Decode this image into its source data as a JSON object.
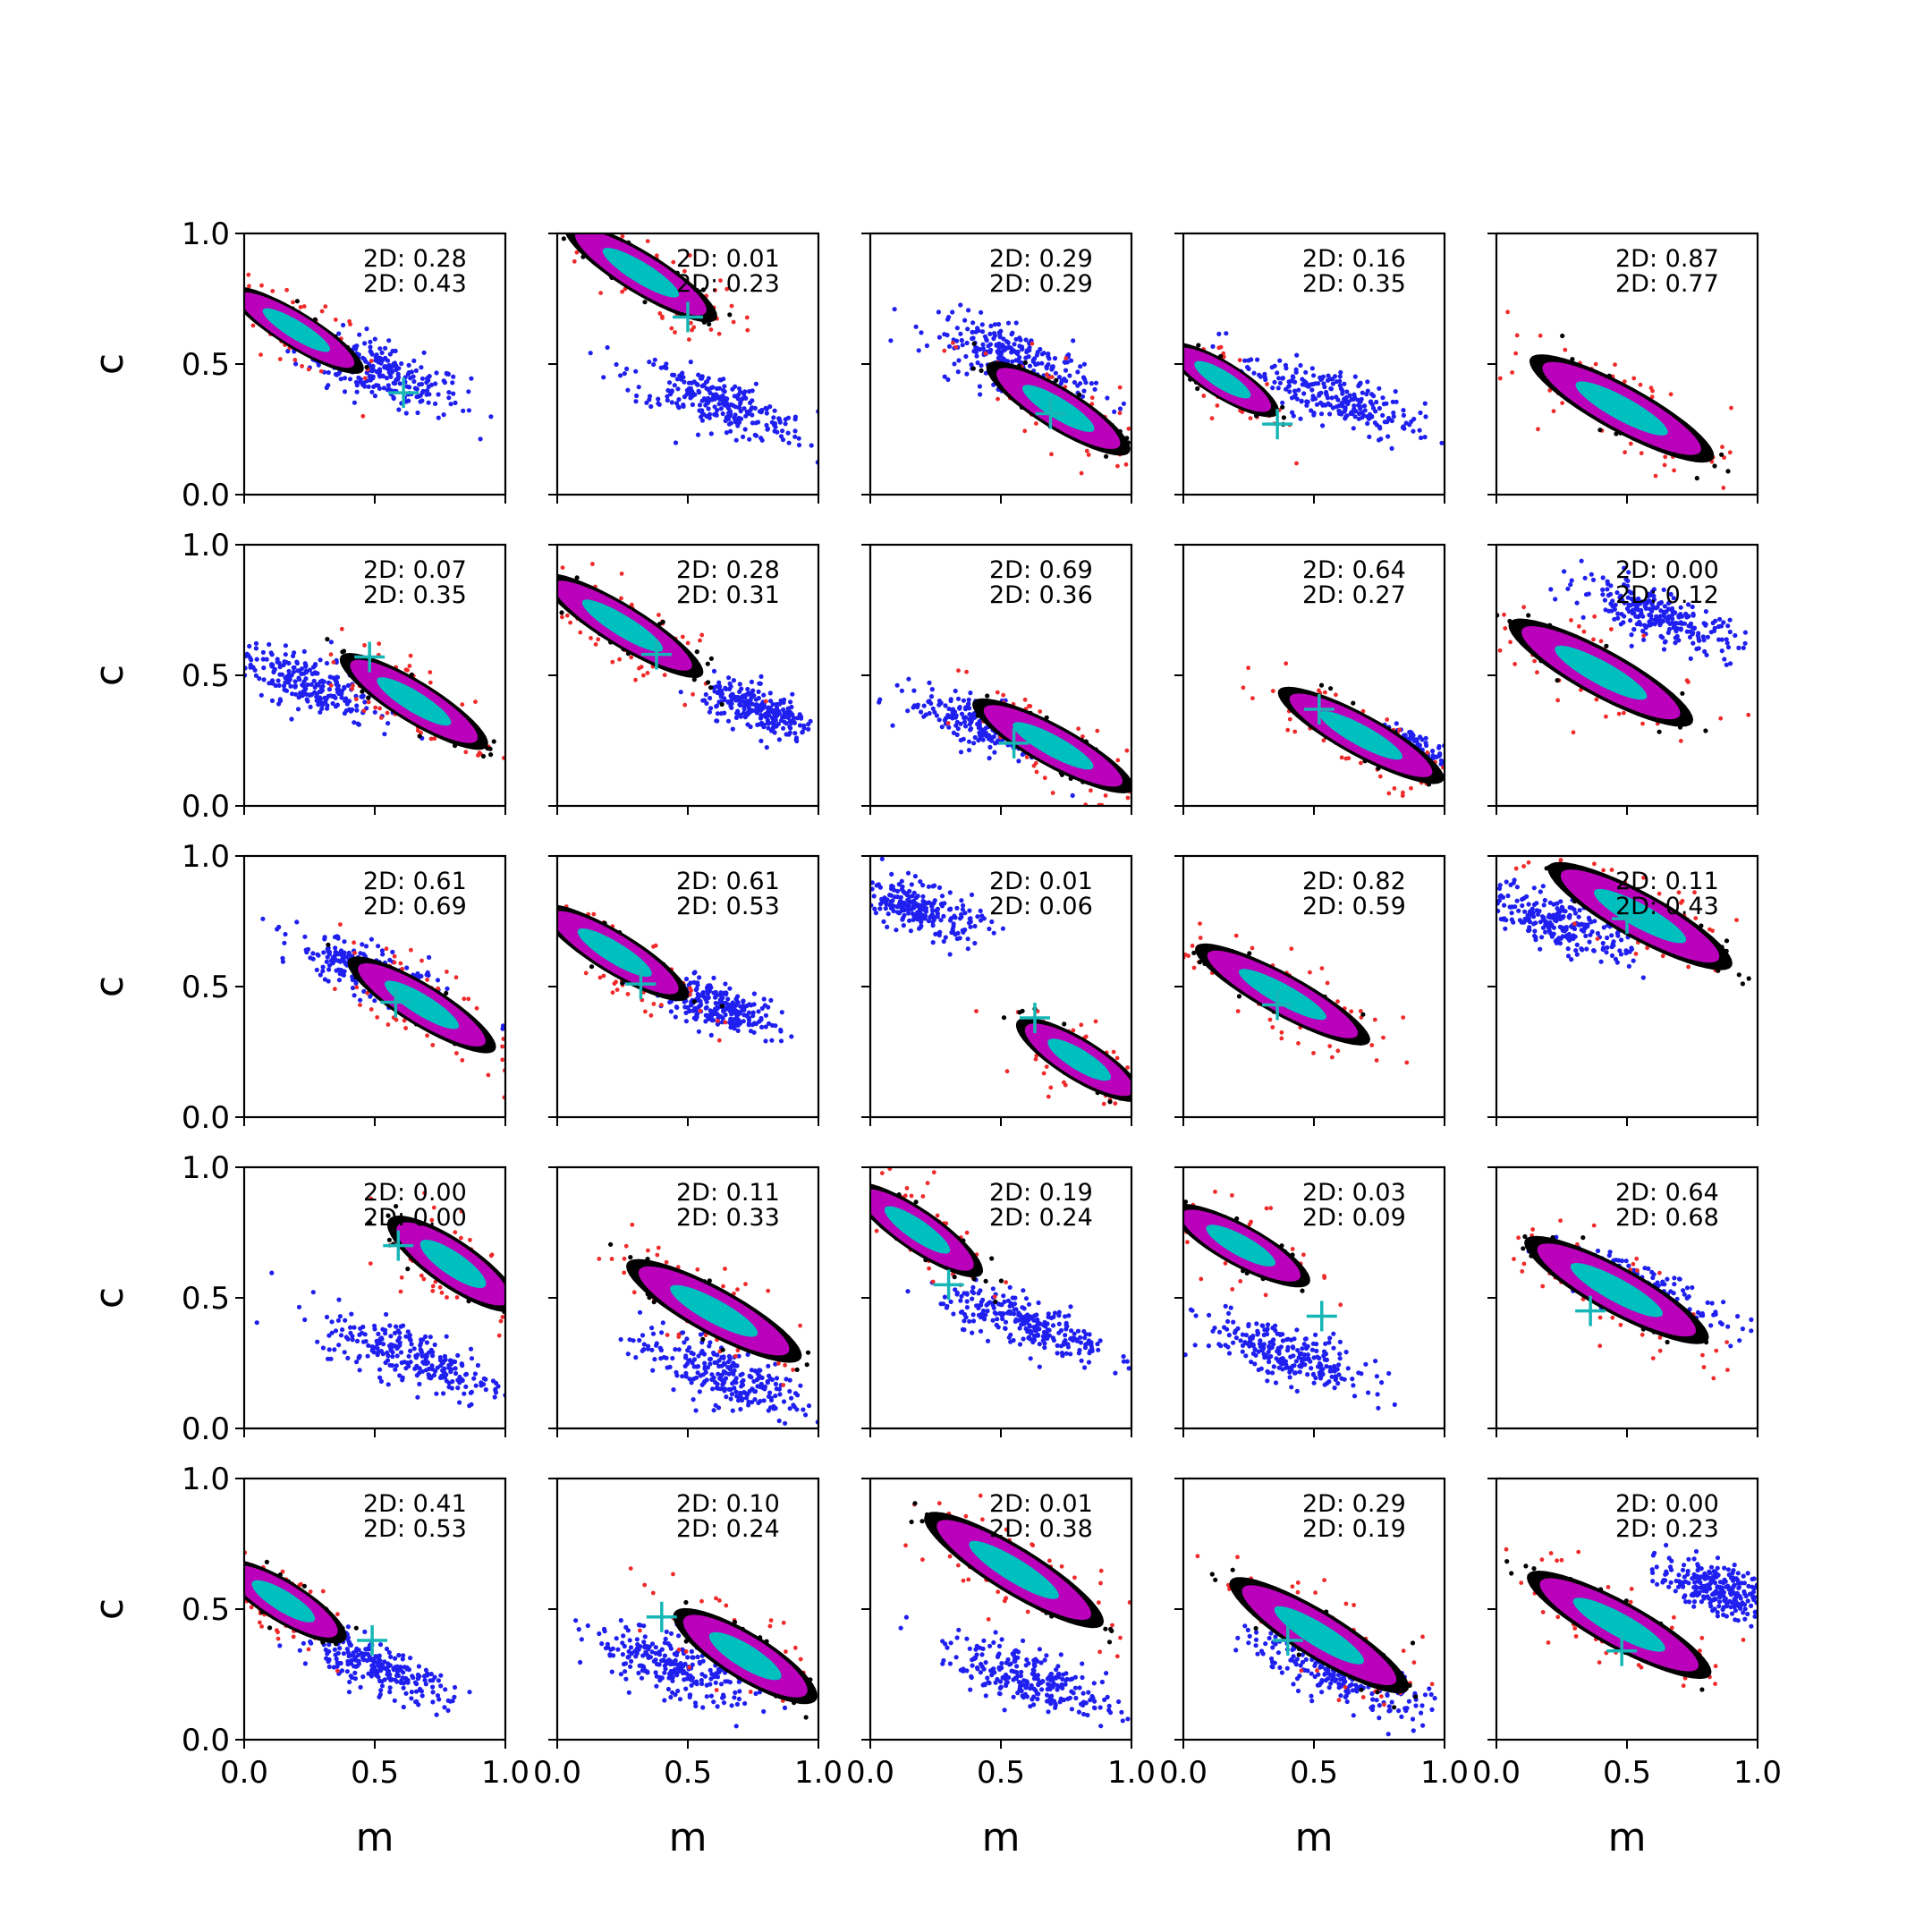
{
  "chart_data": {
    "type": "scatter",
    "layout": "5x5 small multiples",
    "xlabel": "m",
    "ylabel": "c",
    "xlim": [
      0,
      1
    ],
    "ylim": [
      0,
      1
    ],
    "x_ticks": [
      "0.0",
      "0.5",
      "1.0"
    ],
    "y_ticks": [
      "0.0",
      "0.5",
      "1.0"
    ],
    "colors": {
      "blue_samples": "#1f1ff0",
      "red_samples": "#f02a2a",
      "black_outline": "#000000",
      "magenta_core": "#bb00bb",
      "cyan_center": "#00bfbf",
      "truth_marker": "#17b6b6"
    },
    "panels": [
      {
        "labels": [
          "2D: 0.28",
          "2D: 0.43"
        ],
        "main": {
          "cx": 0.2,
          "cy": 0.63,
          "angle": -0.55,
          "sx": 0.3,
          "sy": 0.07
        },
        "blue": {
          "cx": 0.52,
          "cy": 0.47,
          "angle": -0.35,
          "sx": 0.3,
          "sy": 0.1
        },
        "truth": [
          0.61,
          0.39
        ]
      },
      {
        "labels": [
          "2D: 0.01",
          "2D: 0.23"
        ],
        "main": {
          "cx": 0.32,
          "cy": 0.85,
          "angle": -0.55,
          "sx": 0.34,
          "sy": 0.08
        },
        "blue": {
          "cx": 0.62,
          "cy": 0.35,
          "angle": -0.35,
          "sx": 0.33,
          "sy": 0.09
        },
        "truth": [
          0.5,
          0.68
        ]
      },
      {
        "labels": [
          "2D: 0.29",
          "2D: 0.29"
        ],
        "main": {
          "cx": 0.72,
          "cy": 0.33,
          "angle": -0.55,
          "sx": 0.32,
          "sy": 0.08
        },
        "blue": {
          "cx": 0.55,
          "cy": 0.52,
          "angle": -0.35,
          "sx": 0.3,
          "sy": 0.1
        },
        "truth": [
          0.69,
          0.31
        ]
      },
      {
        "labels": [
          "2D: 0.16",
          "2D: 0.35"
        ],
        "main": {
          "cx": 0.15,
          "cy": 0.44,
          "angle": -0.55,
          "sx": 0.25,
          "sy": 0.07
        },
        "blue": {
          "cx": 0.55,
          "cy": 0.38,
          "angle": -0.35,
          "sx": 0.33,
          "sy": 0.09
        },
        "truth": [
          0.36,
          0.27
        ]
      },
      {
        "labels": [
          "2D: 0.87",
          "2D: 0.77"
        ],
        "main": {
          "cx": 0.48,
          "cy": 0.33,
          "angle": -0.5,
          "sx": 0.4,
          "sy": 0.09
        },
        "blue": null,
        "truth": null
      },
      {
        "labels": [
          "2D: 0.07",
          "2D: 0.35"
        ],
        "main": {
          "cx": 0.65,
          "cy": 0.4,
          "angle": -0.55,
          "sx": 0.33,
          "sy": 0.08
        },
        "blue": {
          "cx": 0.22,
          "cy": 0.48,
          "angle": -0.35,
          "sx": 0.28,
          "sy": 0.09
        },
        "truth": [
          0.48,
          0.57
        ]
      },
      {
        "labels": [
          "2D: 0.28",
          "2D: 0.31"
        ],
        "main": {
          "cx": 0.25,
          "cy": 0.69,
          "angle": -0.55,
          "sx": 0.36,
          "sy": 0.08
        },
        "blue": {
          "cx": 0.78,
          "cy": 0.36,
          "angle": -0.35,
          "sx": 0.2,
          "sy": 0.07
        },
        "truth": [
          0.38,
          0.58
        ]
      },
      {
        "labels": [
          "2D: 0.69",
          "2D: 0.36"
        ],
        "main": {
          "cx": 0.7,
          "cy": 0.23,
          "angle": -0.5,
          "sx": 0.35,
          "sy": 0.08
        },
        "blue": {
          "cx": 0.45,
          "cy": 0.3,
          "angle": -0.35,
          "sx": 0.28,
          "sy": 0.08
        },
        "truth": [
          0.55,
          0.24
        ]
      },
      {
        "labels": [
          "2D: 0.64",
          "2D: 0.27"
        ],
        "main": {
          "cx": 0.68,
          "cy": 0.27,
          "angle": -0.5,
          "sx": 0.36,
          "sy": 0.08
        },
        "blue": {
          "cx": 0.85,
          "cy": 0.22,
          "angle": -0.35,
          "sx": 0.14,
          "sy": 0.06
        },
        "truth": [
          0.52,
          0.37
        ]
      },
      {
        "labels": [
          "2D: 0.00",
          "2D: 0.12"
        ],
        "main": {
          "cx": 0.4,
          "cy": 0.51,
          "angle": -0.5,
          "sx": 0.4,
          "sy": 0.09
        },
        "blue": {
          "cx": 0.62,
          "cy": 0.73,
          "angle": -0.35,
          "sx": 0.3,
          "sy": 0.08
        },
        "truth": null
      },
      {
        "labels": [
          "2D: 0.61",
          "2D: 0.69"
        ],
        "main": {
          "cx": 0.68,
          "cy": 0.43,
          "angle": -0.55,
          "sx": 0.33,
          "sy": 0.08
        },
        "blue": {
          "cx": 0.48,
          "cy": 0.55,
          "angle": -0.4,
          "sx": 0.28,
          "sy": 0.08
        },
        "truth": [
          0.58,
          0.44
        ]
      },
      {
        "labels": [
          "2D: 0.61",
          "2D: 0.53"
        ],
        "main": {
          "cx": 0.22,
          "cy": 0.63,
          "angle": -0.55,
          "sx": 0.33,
          "sy": 0.08
        },
        "blue": {
          "cx": 0.62,
          "cy": 0.42,
          "angle": -0.35,
          "sx": 0.22,
          "sy": 0.07
        },
        "truth": [
          0.32,
          0.51
        ]
      },
      {
        "labels": [
          "2D: 0.01",
          "2D: 0.06"
        ],
        "main": {
          "cx": 0.8,
          "cy": 0.22,
          "angle": -0.55,
          "sx": 0.28,
          "sy": 0.08
        },
        "blue": {
          "cx": 0.18,
          "cy": 0.8,
          "angle": -0.35,
          "sx": 0.22,
          "sy": 0.08
        },
        "truth": [
          0.63,
          0.38
        ]
      },
      {
        "labels": [
          "2D: 0.82",
          "2D: 0.59"
        ],
        "main": {
          "cx": 0.38,
          "cy": 0.47,
          "angle": -0.5,
          "sx": 0.38,
          "sy": 0.08
        },
        "blue": null,
        "truth": [
          0.36,
          0.43
        ]
      },
      {
        "labels": [
          "2D: 0.11",
          "2D: 0.43"
        ],
        "main": {
          "cx": 0.55,
          "cy": 0.77,
          "angle": -0.5,
          "sx": 0.4,
          "sy": 0.09
        },
        "blue": {
          "cx": 0.25,
          "cy": 0.74,
          "angle": -0.35,
          "sx": 0.28,
          "sy": 0.09
        },
        "truth": [
          0.5,
          0.76
        ]
      },
      {
        "labels": [
          "2D: 0.00",
          "2D: 0.00"
        ],
        "main": {
          "cx": 0.8,
          "cy": 0.63,
          "angle": -0.6,
          "sx": 0.3,
          "sy": 0.09
        },
        "blue": {
          "cx": 0.66,
          "cy": 0.27,
          "angle": -0.35,
          "sx": 0.34,
          "sy": 0.1
        },
        "truth": [
          0.59,
          0.7
        ]
      },
      {
        "labels": [
          "2D: 0.11",
          "2D: 0.33"
        ],
        "main": {
          "cx": 0.6,
          "cy": 0.45,
          "angle": -0.5,
          "sx": 0.38,
          "sy": 0.09
        },
        "blue": {
          "cx": 0.62,
          "cy": 0.21,
          "angle": -0.35,
          "sx": 0.32,
          "sy": 0.1
        },
        "truth": null
      },
      {
        "labels": [
          "2D: 0.19",
          "2D: 0.24"
        ],
        "main": {
          "cx": 0.18,
          "cy": 0.76,
          "angle": -0.6,
          "sx": 0.3,
          "sy": 0.08
        },
        "blue": {
          "cx": 0.6,
          "cy": 0.4,
          "angle": -0.35,
          "sx": 0.3,
          "sy": 0.08
        },
        "truth": [
          0.3,
          0.55
        ]
      },
      {
        "labels": [
          "2D: 0.03",
          "2D: 0.09"
        ],
        "main": {
          "cx": 0.22,
          "cy": 0.7,
          "angle": -0.5,
          "sx": 0.3,
          "sy": 0.08
        },
        "blue": {
          "cx": 0.4,
          "cy": 0.28,
          "angle": -0.35,
          "sx": 0.3,
          "sy": 0.09
        },
        "truth": [
          0.53,
          0.43
        ]
      },
      {
        "labels": [
          "2D: 0.64",
          "2D: 0.68"
        ],
        "main": {
          "cx": 0.46,
          "cy": 0.53,
          "angle": -0.5,
          "sx": 0.4,
          "sy": 0.09
        },
        "blue": {
          "cx": 0.55,
          "cy": 0.53,
          "angle": -0.4,
          "sx": 0.32,
          "sy": 0.08
        },
        "truth": [
          0.36,
          0.45
        ]
      },
      {
        "labels": [
          "2D: 0.41",
          "2D: 0.53"
        ],
        "main": {
          "cx": 0.15,
          "cy": 0.53,
          "angle": -0.55,
          "sx": 0.28,
          "sy": 0.08
        },
        "blue": {
          "cx": 0.5,
          "cy": 0.28,
          "angle": -0.4,
          "sx": 0.28,
          "sy": 0.07
        },
        "truth": [
          0.49,
          0.38
        ]
      },
      {
        "labels": [
          "2D: 0.10",
          "2D: 0.24"
        ],
        "main": {
          "cx": 0.72,
          "cy": 0.32,
          "angle": -0.55,
          "sx": 0.32,
          "sy": 0.09
        },
        "blue": {
          "cx": 0.45,
          "cy": 0.28,
          "angle": -0.35,
          "sx": 0.3,
          "sy": 0.1
        },
        "truth": [
          0.4,
          0.47
        ]
      },
      {
        "labels": [
          "2D: 0.01",
          "2D: 0.38"
        ],
        "main": {
          "cx": 0.55,
          "cy": 0.65,
          "angle": -0.55,
          "sx": 0.4,
          "sy": 0.09
        },
        "blue": {
          "cx": 0.62,
          "cy": 0.23,
          "angle": -0.35,
          "sx": 0.32,
          "sy": 0.09
        },
        "truth": null
      },
      {
        "labels": [
          "2D: 0.29",
          "2D: 0.19"
        ],
        "main": {
          "cx": 0.52,
          "cy": 0.4,
          "angle": -0.55,
          "sx": 0.4,
          "sy": 0.09
        },
        "blue": {
          "cx": 0.6,
          "cy": 0.25,
          "angle": -0.4,
          "sx": 0.32,
          "sy": 0.09
        },
        "truth": [
          0.4,
          0.38
        ]
      },
      {
        "labels": [
          "2D: 0.00",
          "2D: 0.23"
        ],
        "main": {
          "cx": 0.47,
          "cy": 0.44,
          "angle": -0.5,
          "sx": 0.4,
          "sy": 0.09
        },
        "blue": {
          "cx": 0.84,
          "cy": 0.58,
          "angle": -0.3,
          "sx": 0.2,
          "sy": 0.08
        },
        "truth": [
          0.48,
          0.34
        ]
      }
    ]
  }
}
